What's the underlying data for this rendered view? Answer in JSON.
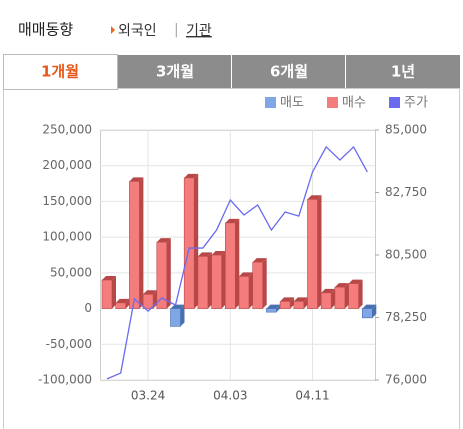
{
  "header": {
    "title": "매매동향",
    "links": [
      "외국인",
      "기관"
    ],
    "separator": "|"
  },
  "tabs": [
    "1개월",
    "3개월",
    "6개월",
    "1년"
  ],
  "chart_data": {
    "type": "bar",
    "categories": [
      null,
      null,
      null,
      "03.24",
      null,
      null,
      null,
      null,
      null,
      "04.03",
      null,
      null,
      null,
      null,
      null,
      "04.11",
      null,
      null,
      null,
      null
    ],
    "series": [
      {
        "name": "매도",
        "color": "#7fa7e6",
        "values": [
          null,
          null,
          null,
          null,
          null,
          -25000,
          null,
          null,
          null,
          null,
          null,
          null,
          -5000,
          null,
          null,
          null,
          null,
          null,
          null,
          -13000
        ]
      },
      {
        "name": "매수",
        "color": "#f47c7c",
        "values": [
          40000,
          8000,
          178000,
          20000,
          93000,
          null,
          183000,
          73000,
          75000,
          120000,
          45000,
          65000,
          null,
          10000,
          10000,
          153000,
          22000,
          30000,
          35000,
          null
        ]
      },
      {
        "name": "주가",
        "color": "#6a6af0",
        "axis": "y2",
        "type": "line",
        "values": [
          76040,
          76250,
          78920,
          78480,
          78950,
          78700,
          80750,
          80750,
          81400,
          82480,
          81940,
          82300,
          81400,
          82050,
          81900,
          83490,
          84390,
          83920,
          84390,
          83490
        ]
      }
    ],
    "ylim": [
      -100000,
      250000
    ],
    "yticks": [
      {
        "value": -100000,
        "label": "-100,000"
      },
      {
        "value": -50000,
        "label": "-50,000"
      },
      0,
      {
        "value": 50000,
        "label": "50,000"
      },
      {
        "value": 100000,
        "label": "100,000"
      },
      {
        "value": 150000,
        "label": "150,000"
      },
      {
        "value": 200000,
        "label": "200,000"
      },
      {
        "value": 250000,
        "label": "250,000"
      }
    ],
    "y2lim": [
      76000,
      85000
    ],
    "y2ticks": [
      {
        "value": 76000,
        "label": "76,000"
      },
      {
        "value": 78250,
        "label": "78,250"
      },
      {
        "value": 80500,
        "label": "80,500"
      },
      {
        "value": 82750,
        "label": "82,750"
      },
      {
        "value": 85000,
        "label": "85,000"
      }
    ],
    "grid": true
  }
}
